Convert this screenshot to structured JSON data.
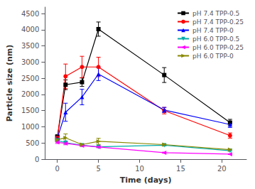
{
  "chart_data": {
    "type": "line",
    "xlabel": "Time (days)",
    "ylabel": "Particle size (nm)",
    "xlim": [
      -1.5,
      23
    ],
    "ylim": [
      0,
      4700
    ],
    "xticks": [
      0,
      5,
      10,
      15,
      20
    ],
    "yticks": [
      0,
      500,
      1000,
      1500,
      2000,
      2500,
      3000,
      3500,
      4000,
      4500
    ],
    "grid": false,
    "legend": "upper right",
    "series": [
      {
        "name": "pH 7.4 TPP-0.5",
        "color": "#000000",
        "marker": "square",
        "x": [
          0,
          1,
          3,
          5,
          13,
          21
        ],
        "values": [
          680,
          2300,
          2380,
          4020,
          2600,
          1130
        ],
        "yerr": [
          80,
          150,
          130,
          220,
          230,
          100
        ]
      },
      {
        "name": "pH 7.4 TPP-0.25",
        "color": "#ff0000",
        "marker": "circle",
        "x": [
          0,
          1,
          3,
          5,
          13,
          21
        ],
        "values": [
          660,
          2560,
          2850,
          2850,
          1500,
          730
        ],
        "yerr": [
          70,
          380,
          330,
          300,
          100,
          80
        ]
      },
      {
        "name": "pH 7.4 TPP-0",
        "color": "#0000ff",
        "marker": "triangle-up",
        "x": [
          0,
          1,
          3,
          5,
          13,
          21
        ],
        "values": [
          650,
          1450,
          1920,
          2630,
          1520,
          1070
        ],
        "yerr": [
          60,
          280,
          240,
          200,
          80,
          90
        ]
      },
      {
        "name": "pH 6.0 TPP-0.5",
        "color": "#00aaaa",
        "marker": "triangle-down",
        "x": [
          0,
          1,
          3,
          5,
          13,
          21
        ],
        "values": [
          580,
          510,
          430,
          380,
          430,
          260
        ],
        "yerr": [
          40,
          30,
          25,
          20,
          25,
          18
        ]
      },
      {
        "name": "pH 6.0 TPP-0.25",
        "color": "#ff00ff",
        "marker": "triangle-left",
        "x": [
          0,
          1,
          3,
          5,
          13,
          21
        ],
        "values": [
          520,
          490,
          420,
          375,
          200,
          155
        ],
        "yerr": [
          35,
          45,
          28,
          22,
          18,
          12
        ]
      },
      {
        "name": "pH 6.0 TPP-0",
        "color": "#888800",
        "marker": "triangle-right",
        "x": [
          0,
          1,
          3,
          5,
          13,
          21
        ],
        "values": [
          600,
          660,
          450,
          550,
          450,
          295
        ],
        "yerr": [
          55,
          120,
          28,
          95,
          28,
          18
        ]
      }
    ]
  }
}
